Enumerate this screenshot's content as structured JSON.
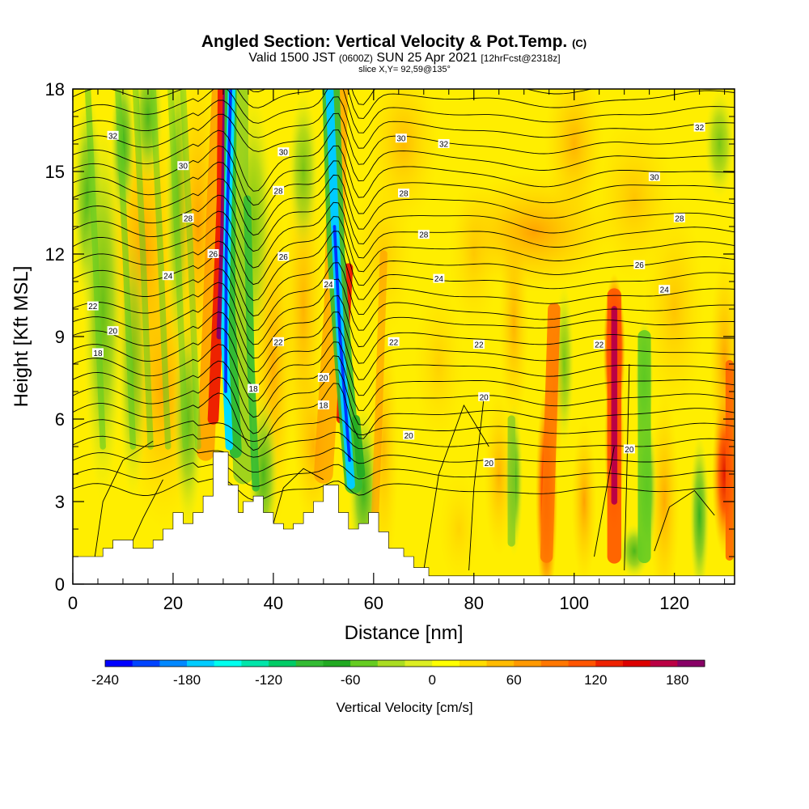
{
  "title": {
    "main": "Angled Section: Vertical Velocity & Pot.Temp.",
    "main_note": "(C)",
    "line2_a": "Valid 1500 JST",
    "line2_b": "(0600Z)",
    "line2_c": "SUN 25 Apr 2021",
    "line2_d": "[12hrFcst@2318z]",
    "line3": "slice X,Y= 92,59@135°"
  },
  "chart_data": {
    "type": "heatmap",
    "xlabel": "Distance [nm]",
    "ylabel": "Height [Kft MSL]",
    "xlim": [
      0,
      132
    ],
    "ylim": [
      0,
      18
    ],
    "x_ticks": [
      0,
      20,
      40,
      60,
      80,
      100,
      120
    ],
    "x_tick_labels": [
      "0",
      "20",
      "40",
      "60",
      "80",
      "100",
      "120"
    ],
    "y_ticks": [
      0,
      3,
      6,
      9,
      12,
      15,
      18
    ],
    "y_tick_labels": [
      "0",
      "3",
      "6",
      "9",
      "12",
      "15",
      "18"
    ],
    "terrain_profile_kft": [
      [
        0,
        1.0
      ],
      [
        6,
        1.0
      ],
      [
        6,
        1.3
      ],
      [
        8,
        1.3
      ],
      [
        8,
        1.6
      ],
      [
        12,
        1.6
      ],
      [
        12,
        1.3
      ],
      [
        16,
        1.3
      ],
      [
        16,
        1.6
      ],
      [
        18,
        1.6
      ],
      [
        18,
        2.0
      ],
      [
        20,
        2.0
      ],
      [
        20,
        2.6
      ],
      [
        22,
        2.6
      ],
      [
        22,
        2.2
      ],
      [
        24,
        2.2
      ],
      [
        24,
        2.6
      ],
      [
        26,
        2.6
      ],
      [
        26,
        3.2
      ],
      [
        28,
        3.2
      ],
      [
        28,
        4.8
      ],
      [
        31,
        4.8
      ],
      [
        31,
        3.6
      ],
      [
        33,
        3.6
      ],
      [
        33,
        2.6
      ],
      [
        34,
        2.6
      ],
      [
        34,
        3.0
      ],
      [
        36,
        3.0
      ],
      [
        36,
        3.2
      ],
      [
        38,
        3.2
      ],
      [
        38,
        2.6
      ],
      [
        40,
        2.6
      ],
      [
        40,
        2.2
      ],
      [
        42,
        2.2
      ],
      [
        42,
        2.0
      ],
      [
        44,
        2.0
      ],
      [
        44,
        2.2
      ],
      [
        46,
        2.2
      ],
      [
        46,
        2.6
      ],
      [
        48,
        2.6
      ],
      [
        48,
        3.0
      ],
      [
        50,
        3.0
      ],
      [
        50,
        3.6
      ],
      [
        53,
        3.6
      ],
      [
        53,
        2.6
      ],
      [
        55,
        2.6
      ],
      [
        55,
        2.0
      ],
      [
        57,
        2.0
      ],
      [
        57,
        2.2
      ],
      [
        59,
        2.2
      ],
      [
        59,
        2.6
      ],
      [
        61,
        2.6
      ],
      [
        61,
        1.9
      ],
      [
        63,
        1.9
      ],
      [
        63,
        1.3
      ],
      [
        66,
        1.3
      ],
      [
        66,
        1.0
      ],
      [
        68,
        1.0
      ],
      [
        68,
        0.6
      ],
      [
        71,
        0.6
      ],
      [
        71,
        0.3
      ],
      [
        132,
        0.3
      ]
    ],
    "series": [
      {
        "name": "Vertical Velocity [cm/s]",
        "type": "heatmap",
        "units": "cm/s",
        "features": [
          {
            "kind": "downdraft",
            "x_nm": [
              31,
              30
            ],
            "height_kft": [
              4.8,
              18
            ],
            "peak": -240
          },
          {
            "kind": "updraft",
            "x_nm": [
              29,
              30
            ],
            "height_kft": [
              8,
              18
            ],
            "peak": 180
          },
          {
            "kind": "downdraft",
            "x_nm": [
              55,
              51
            ],
            "height_kft": [
              4,
              18
            ],
            "peak": -200
          },
          {
            "kind": "updraft",
            "x_nm": [
              55,
              53
            ],
            "height_kft": [
              6,
              12
            ],
            "peak": 120
          },
          {
            "kind": "updraft",
            "x_nm": [
              95,
              96
            ],
            "height_kft": [
              1,
              10
            ],
            "peak": 150
          },
          {
            "kind": "updraft",
            "x_nm": [
              108,
              108
            ],
            "height_kft": [
              1,
              11
            ],
            "peak": 180
          },
          {
            "kind": "downdraft",
            "x_nm": [
              114,
              114
            ],
            "height_kft": [
              1,
              9
            ],
            "peak": -80
          }
        ]
      },
      {
        "name": "Pot.Temp. (C)",
        "type": "contour",
        "units": "C",
        "levels": [
          18,
          20,
          22,
          24,
          26,
          28,
          30,
          32
        ],
        "contour_labels": [
          {
            "text": "32",
            "x": 8,
            "y": 16.3
          },
          {
            "text": "30",
            "x": 22,
            "y": 15.2
          },
          {
            "text": "28",
            "x": 23,
            "y": 13.3
          },
          {
            "text": "26",
            "x": 28,
            "y": 12.0
          },
          {
            "text": "24",
            "x": 19,
            "y": 11.2
          },
          {
            "text": "22",
            "x": 4,
            "y": 10.1
          },
          {
            "text": "20",
            "x": 8,
            "y": 9.2
          },
          {
            "text": "18",
            "x": 5,
            "y": 8.4
          },
          {
            "text": "30",
            "x": 42,
            "y": 15.7
          },
          {
            "text": "28",
            "x": 41,
            "y": 14.3
          },
          {
            "text": "26",
            "x": 42,
            "y": 11.9
          },
          {
            "text": "24",
            "x": 51,
            "y": 10.9
          },
          {
            "text": "22",
            "x": 41,
            "y": 8.8
          },
          {
            "text": "20",
            "x": 50,
            "y": 7.5
          },
          {
            "text": "18",
            "x": 50,
            "y": 6.5
          },
          {
            "text": "18",
            "x": 36,
            "y": 7.1
          },
          {
            "text": "30",
            "x": 65.5,
            "y": 16.2
          },
          {
            "text": "32",
            "x": 74,
            "y": 16.0
          },
          {
            "text": "28",
            "x": 66,
            "y": 14.2
          },
          {
            "text": "28",
            "x": 70,
            "y": 12.7
          },
          {
            "text": "24",
            "x": 73,
            "y": 11.1
          },
          {
            "text": "22",
            "x": 64,
            "y": 8.8
          },
          {
            "text": "20",
            "x": 67,
            "y": 5.4
          },
          {
            "text": "32",
            "x": 125,
            "y": 16.6
          },
          {
            "text": "30",
            "x": 116,
            "y": 14.8
          },
          {
            "text": "28",
            "x": 121,
            "y": 13.3
          },
          {
            "text": "26",
            "x": 113,
            "y": 11.6
          },
          {
            "text": "24",
            "x": 118,
            "y": 10.7
          },
          {
            "text": "22",
            "x": 81,
            "y": 8.7
          },
          {
            "text": "22",
            "x": 105,
            "y": 8.7
          },
          {
            "text": "20",
            "x": 82,
            "y": 6.8
          },
          {
            "text": "20",
            "x": 83,
            "y": 4.4
          },
          {
            "text": "20",
            "x": 111,
            "y": 4.9
          }
        ]
      }
    ],
    "colorbar": {
      "label": "Vertical Velocity [cm/s]",
      "min": -240,
      "max": 200,
      "step": 20,
      "tick_values": [
        -240,
        -180,
        -120,
        -60,
        0,
        60,
        120,
        180
      ],
      "tick_labels": [
        "-240",
        "-180",
        "-120",
        "-60",
        "0",
        "60",
        "120",
        "180"
      ],
      "colors": [
        "#0000ff",
        "#0044ff",
        "#0088ff",
        "#00ccff",
        "#00ffee",
        "#00e6aa",
        "#00cc66",
        "#33bb33",
        "#22aa22",
        "#66cc22",
        "#aadd22",
        "#ddee22",
        "#ffff00",
        "#ffdd00",
        "#ffbb00",
        "#ff9900",
        "#ff7700",
        "#ff5500",
        "#ee2200",
        "#dd0000",
        "#bb0044",
        "#880066"
      ]
    },
    "grid": false,
    "legend": "colorbar-bottom"
  }
}
